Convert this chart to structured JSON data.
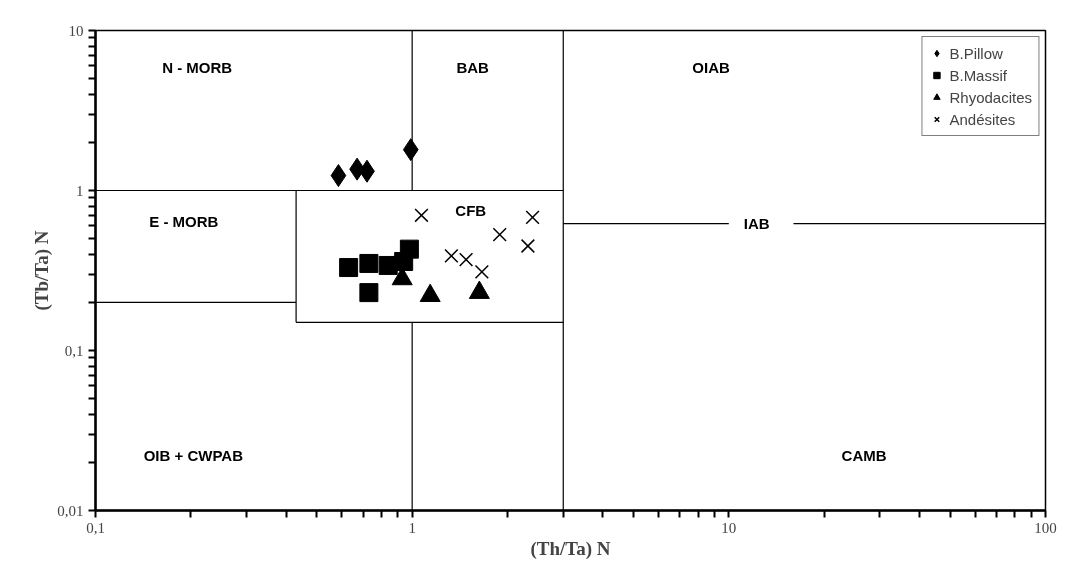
{
  "chart_data": {
    "type": "scatter",
    "xlabel": "(Th/Ta) N",
    "ylabel": "(Tb/Ta) N",
    "log": "xy",
    "grid": false,
    "legend": "top right",
    "xlim": [
      0.1,
      100
    ],
    "ylim": [
      0.01,
      10
    ],
    "xticks": [
      {
        "value": 0.1,
        "label": "0,1"
      },
      {
        "value": 0.2,
        "label": null
      },
      {
        "value": 0.3,
        "label": null
      },
      {
        "value": 0.4,
        "label": null
      },
      {
        "value": 0.5,
        "label": null
      },
      {
        "value": 0.6,
        "label": null
      },
      {
        "value": 0.7,
        "label": null
      },
      {
        "value": 0.8,
        "label": null
      },
      {
        "value": 0.9,
        "label": null
      },
      1,
      {
        "value": 2,
        "label": null
      },
      {
        "value": 3,
        "label": null
      },
      {
        "value": 4,
        "label": null
      },
      {
        "value": 5,
        "label": null
      },
      {
        "value": 6,
        "label": null
      },
      {
        "value": 7,
        "label": null
      },
      {
        "value": 8,
        "label": null
      },
      {
        "value": 9,
        "label": null
      },
      10,
      {
        "value": 20,
        "label": null
      },
      {
        "value": 30,
        "label": null
      },
      {
        "value": 40,
        "label": null
      },
      {
        "value": 50,
        "label": null
      },
      {
        "value": 60,
        "label": null
      },
      {
        "value": 70,
        "label": null
      },
      {
        "value": 80,
        "label": null
      },
      {
        "value": 90,
        "label": null
      },
      100
    ],
    "yticks": [
      {
        "value": 0.01,
        "label": "0,01"
      },
      {
        "value": 0.02,
        "label": null
      },
      {
        "value": 0.03,
        "label": null
      },
      {
        "value": 0.04,
        "label": null
      },
      {
        "value": 0.05,
        "label": null
      },
      {
        "value": 0.06,
        "label": null
      },
      {
        "value": 0.07,
        "label": null
      },
      {
        "value": 0.08,
        "label": null
      },
      {
        "value": 0.09,
        "label": null
      },
      {
        "value": 0.1,
        "label": "0,1"
      },
      {
        "value": 0.2,
        "label": null
      },
      {
        "value": 0.3,
        "label": null
      },
      {
        "value": 0.4,
        "label": null
      },
      {
        "value": 0.5,
        "label": null
      },
      {
        "value": 0.6,
        "label": null
      },
      {
        "value": 0.7,
        "label": null
      },
      {
        "value": 0.8,
        "label": null
      },
      {
        "value": 0.9,
        "label": null
      },
      1,
      {
        "value": 2,
        "label": null
      },
      {
        "value": 3,
        "label": null
      },
      {
        "value": 4,
        "label": null
      },
      {
        "value": 5,
        "label": null
      },
      {
        "value": 6,
        "label": null
      },
      {
        "value": 7,
        "label": null
      },
      {
        "value": 8,
        "label": null
      },
      {
        "value": 9,
        "label": null
      },
      10
    ],
    "series": [
      {
        "name": "B.Pillow",
        "color": "#000000",
        "marker": "diamond",
        "x": [
          0.585,
          0.67,
          0.72,
          0.99
        ],
        "values": [
          1.24,
          1.36,
          1.32,
          1.8
        ]
      },
      {
        "name": "B.Massif",
        "color": "#000000",
        "marker": "square",
        "x": [
          0.63,
          0.73,
          0.84,
          0.98,
          0.94,
          0.73
        ],
        "values": [
          0.33,
          0.35,
          0.34,
          0.43,
          0.36,
          0.23
        ]
      },
      {
        "name": "Rhyodacites",
        "color": "#000000",
        "marker": "triangle",
        "x": [
          0.93,
          1.14,
          1.63
        ],
        "values": [
          0.28,
          0.22,
          0.23
        ]
      },
      {
        "name": "Andésites",
        "color": "#000000",
        "marker": "cross",
        "x": [
          1.07,
          1.33,
          1.48,
          1.66,
          1.89,
          2.4,
          2.32
        ],
        "values": [
          0.7,
          0.39,
          0.37,
          0.31,
          0.53,
          0.68,
          0.45
        ]
      },
      {
        "type": "line",
        "color": "#000000",
        "x": [
          1,
          1
        ],
        "values": [
          10,
          1
        ]
      },
      {
        "type": "line",
        "color": "#000000",
        "x": [
          3,
          3
        ],
        "values": [
          10,
          0.01
        ]
      },
      {
        "type": "line",
        "color": "#000000",
        "x": [
          0.1,
          3
        ],
        "values": [
          1,
          1
        ]
      },
      {
        "type": "line",
        "color": "#000000",
        "x": [
          0.1,
          0.43
        ],
        "values": [
          0.2,
          0.2
        ]
      },
      {
        "type": "line",
        "color": "#000000",
        "x": [
          0.43,
          0.43
        ],
        "values": [
          1,
          0.15
        ]
      },
      {
        "type": "line",
        "color": "#000000",
        "x": [
          0.43,
          3
        ],
        "values": [
          0.15,
          0.15
        ]
      },
      {
        "type": "line",
        "color": "#000000",
        "x": [
          1,
          1
        ],
        "values": [
          0.15,
          0.01
        ]
      },
      {
        "type": "line",
        "color": "#000000",
        "x": [
          3,
          10
        ],
        "values": [
          0.62,
          0.62
        ]
      },
      {
        "type": "line",
        "color": "#000000",
        "x": [
          16,
          100
        ],
        "values": [
          0.62,
          0.62
        ]
      }
    ],
    "annotations": [
      "N - MORB",
      "BAB",
      "OIAB",
      "E - MORB",
      "CFB",
      "IAB",
      "OIB + CWPAB",
      "CAMB"
    ]
  }
}
